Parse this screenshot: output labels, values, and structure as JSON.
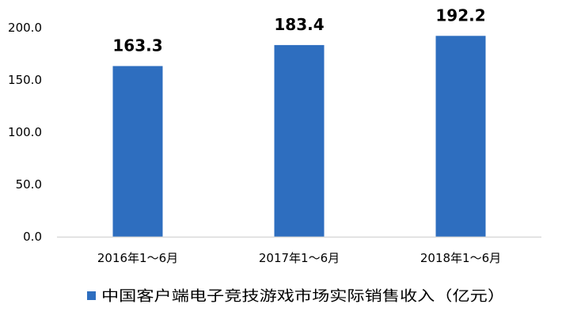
{
  "chart_data": {
    "type": "bar",
    "categories": [
      "2016年1～6月",
      "2017年1～6月",
      "2018年1～6月"
    ],
    "series": [
      {
        "name": "中国客户端电子竞技游戏市场实际销售收入（亿元）",
        "values": [
          163.3,
          183.4,
          192.2
        ],
        "color": "#2E6EBF"
      }
    ],
    "ylim": [
      0,
      200
    ],
    "yticks": [
      "0.0",
      "50.0",
      "100.0",
      "150.0",
      "200.0"
    ],
    "data_labels": [
      "163.3",
      "183.4",
      "192.2"
    ],
    "grid": false,
    "legend_position": "bottom",
    "axis_color": "#D9D9D9"
  }
}
